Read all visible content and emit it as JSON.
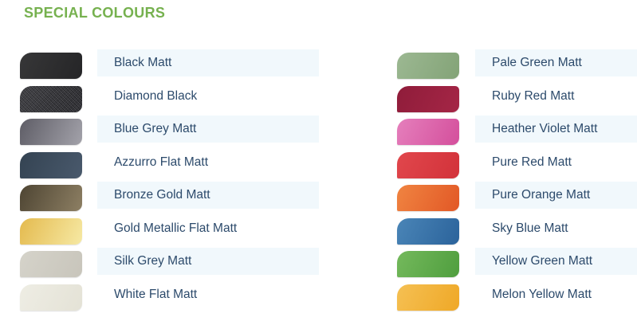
{
  "title": "SPECIAL COLOURS",
  "theme": {
    "title_color": "#76b14f",
    "label_color": "#2c4a6b",
    "row_bg": "#ffffff",
    "row_alt_bg": "#f1f8fc"
  },
  "columns": [
    {
      "items": [
        {
          "label": "Black Matt",
          "c1": "#373738",
          "c2": "#252527"
        },
        {
          "label": "Diamond Black",
          "c1": "#303033",
          "c2": "#1f1f22",
          "texture": "sparkle"
        },
        {
          "label": "Blue Grey Matt",
          "c1": "#5e5d66",
          "c2": "#a3a2aa"
        },
        {
          "label": "Azzurro Flat Matt",
          "c1": "#344352",
          "c2": "#49596c"
        },
        {
          "label": "Bronze Gold Matt",
          "c1": "#4e4533",
          "c2": "#8d7f63"
        },
        {
          "label": "Gold Metallic Flat Matt",
          "c1": "#e4ba4e",
          "c2": "#f6e9a4"
        },
        {
          "label": "Silk Grey Matt",
          "c1": "#d5d3ca",
          "c2": "#c8c5bb"
        },
        {
          "label": "White Flat Matt",
          "c1": "#eeede4",
          "c2": "#e4e2d6"
        }
      ]
    },
    {
      "items": [
        {
          "label": "Pale Green Matt",
          "c1": "#9cb892",
          "c2": "#83a377"
        },
        {
          "label": "Ruby Red Matt",
          "c1": "#8f1c3a",
          "c2": "#a52646"
        },
        {
          "label": "Heather Violet Matt",
          "c1": "#e57fbc",
          "c2": "#d44f9c"
        },
        {
          "label": "Pure Red Matt",
          "c1": "#e1474c",
          "c2": "#d2323a"
        },
        {
          "label": "Pure Orange Matt",
          "c1": "#f08441",
          "c2": "#e25826"
        },
        {
          "label": "Sky Blue Matt",
          "c1": "#4a85b7",
          "c2": "#2b639b"
        },
        {
          "label": "Yellow Green Matt",
          "c1": "#74b95c",
          "c2": "#4f9e3e"
        },
        {
          "label": "Melon Yellow Matt",
          "c1": "#f5c053",
          "c2": "#efa827"
        }
      ]
    }
  ]
}
